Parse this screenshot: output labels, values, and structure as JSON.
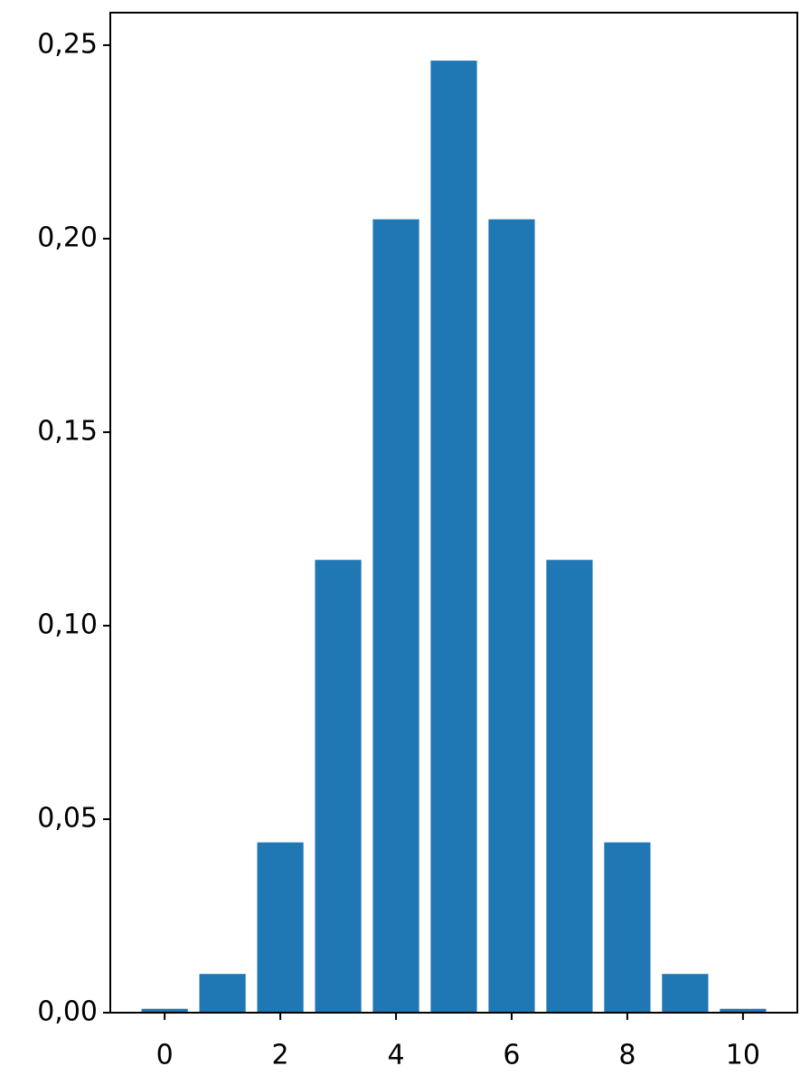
{
  "chart_data": {
    "type": "bar",
    "x": [
      0,
      1,
      2,
      3,
      4,
      5,
      6,
      7,
      8,
      9,
      10
    ],
    "values": [
      0.001,
      0.01,
      0.044,
      0.117,
      0.205,
      0.246,
      0.205,
      0.117,
      0.044,
      0.01,
      0.001
    ],
    "color": "#1f77b4",
    "xlim": [
      -0.94,
      10.94
    ],
    "xticks": [
      0,
      2,
      4,
      6,
      8,
      10
    ],
    "ylim": [
      0,
      0.2584
    ],
    "yticks": [
      {
        "value": 0,
        "label": "0,00"
      },
      {
        "value": 0.05,
        "label": "0,05"
      },
      {
        "value": 0.1,
        "label": "0,10"
      },
      {
        "value": 0.15,
        "label": "0,15"
      },
      {
        "value": 0.2,
        "label": "0,20"
      },
      {
        "value": 0.25,
        "label": "0,25"
      }
    ],
    "grid": false
  }
}
